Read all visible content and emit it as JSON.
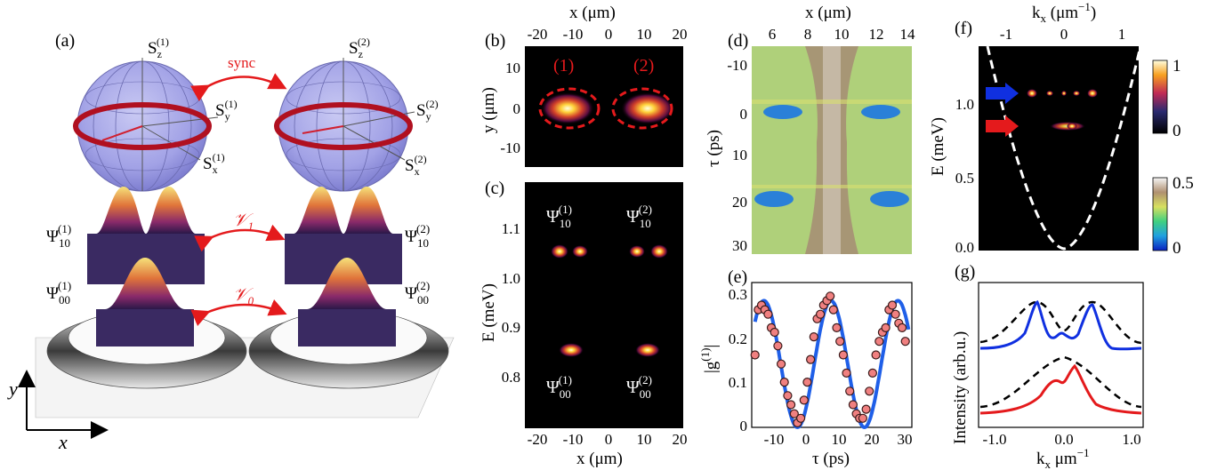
{
  "panels": {
    "a": {
      "label": "(a)",
      "sphere1": {
        "z": "S",
        "zsup": "(1)",
        "zsub": "z",
        "y": "S",
        "ysup": "(1)",
        "ysub": "y",
        "x": "S",
        "xsup": "(1)",
        "xsub": "x"
      },
      "sphere2": {
        "z": "S",
        "zsup": "(2)",
        "zsub": "z",
        "y": "S",
        "ysup": "(2)",
        "ysub": "y",
        "x": "S",
        "xsup": "(2)",
        "xsub": "x"
      },
      "sync": "sync",
      "v1": "𝒱",
      "v1sub": "1",
      "v0": "𝒱",
      "v0sub": "0",
      "psi10_1": {
        "base": "Ψ",
        "sub": "10",
        "sup": "(1)"
      },
      "psi10_2": {
        "base": "Ψ",
        "sub": "10",
        "sup": "(2)"
      },
      "psi00_1": {
        "base": "Ψ",
        "sub": "00",
        "sup": "(1)"
      },
      "psi00_2": {
        "base": "Ψ",
        "sub": "00",
        "sup": "(2)"
      },
      "axis_y": "y",
      "axis_x": "x"
    },
    "b": {
      "label": "(b)",
      "xlabel": "x (μm)",
      "ylabel": "y (μm)",
      "xticks": [
        "-20",
        "-10",
        "0",
        "10",
        "20"
      ],
      "yticks": [
        "10",
        "0",
        "-10"
      ],
      "mark1": "(1)",
      "mark2": "(2)"
    },
    "c": {
      "label": "(c)",
      "xlabel": "x (μm)",
      "ylabel": "E (meV)",
      "xticks": [
        "-20",
        "-10",
        "0",
        "10",
        "20"
      ],
      "yticks": [
        "1.1",
        "1.0",
        "0.9",
        "0.8"
      ],
      "psi10_1": {
        "base": "Ψ",
        "sub": "10",
        "sup": "(1)"
      },
      "psi10_2": {
        "base": "Ψ",
        "sub": "10",
        "sup": "(2)"
      },
      "psi00_1": {
        "base": "Ψ",
        "sub": "00",
        "sup": "(1)"
      },
      "psi00_2": {
        "base": "Ψ",
        "sub": "00",
        "sup": "(2)"
      }
    },
    "d": {
      "label": "(d)",
      "xlabel": "x (μm)",
      "ylabel": "τ (ps)",
      "xticks": [
        "6",
        "8",
        "10",
        "12",
        "14"
      ],
      "yticks": [
        "-10",
        "0",
        "10",
        "20",
        "30"
      ]
    },
    "e": {
      "label": "(e)",
      "xlabel": "τ (ps)",
      "ylabel": "|g",
      "ylabel_sup": "(1)",
      "ylabel_end": "|",
      "xticks": [
        "-10",
        "0",
        "10",
        "20",
        "30"
      ],
      "yticks": [
        "0.3",
        "0.2",
        "0.1",
        "0"
      ]
    },
    "f": {
      "label": "(f)",
      "xlabel": "k",
      "xlabel_sub": "x",
      "xlabel_unit": " (μm",
      "xlabel_unit_sup": "−1",
      "xlabel_end": ")",
      "ylabel": "E (meV)",
      "xticks": [
        "-1",
        "0",
        "1"
      ],
      "yticks": [
        "1.0",
        "0.5",
        "0.0"
      ],
      "cbar1_ticks": [
        "1",
        "0"
      ],
      "cbar2_ticks": [
        "0.5",
        "0"
      ]
    },
    "g": {
      "label": "(g)",
      "xlabel": "k",
      "xlabel_sub": "x",
      "xlabel_unit": " μm",
      "xlabel_unit_sup": "−1",
      "ylabel": "Intensity (arb.u.)",
      "xticks": [
        "-1.0",
        "0.0",
        "1.0"
      ]
    }
  },
  "colors": {
    "red": "#e41a1c",
    "blue": "#1030e0",
    "marker": "#f08080",
    "fit": "#1f5fe8"
  },
  "chart_data": [
    {
      "type": "scatter",
      "panel": "e",
      "xlabel": "τ (ps)",
      "ylabel": "|g(1)|",
      "xlim": [
        -14,
        35
      ],
      "ylim": [
        0,
        0.32
      ],
      "x": [
        -13,
        -12,
        -11,
        -10,
        -9,
        -8,
        -7,
        -6,
        -5,
        -4,
        -3,
        -2,
        -1,
        0,
        1,
        2,
        3,
        4,
        5,
        6,
        7,
        8,
        9,
        10,
        11,
        12,
        13,
        14,
        15,
        16,
        17,
        18,
        19,
        20,
        21,
        22,
        23,
        24,
        25,
        26,
        27,
        28,
        29,
        30,
        31,
        32,
        33
      ],
      "y": [
        0.16,
        0.26,
        0.27,
        0.26,
        0.25,
        0.22,
        0.21,
        0.18,
        0.14,
        0.1,
        0.07,
        0.05,
        0.03,
        0.01,
        0.02,
        0.06,
        0.1,
        0.15,
        0.2,
        0.24,
        0.25,
        0.27,
        0.28,
        0.29,
        0.26,
        0.22,
        0.19,
        0.16,
        0.12,
        0.08,
        0.05,
        0.03,
        0.02,
        0.02,
        0.04,
        0.08,
        0.12,
        0.16,
        0.19,
        0.21,
        0.22,
        0.26,
        0.27,
        0.25,
        0.23,
        0.22,
        0.19
      ],
      "fit": {
        "amplitude": 0.14,
        "offset": 0.14,
        "period": 20.5,
        "phase_zero_tau": 0
      }
    },
    {
      "type": "line",
      "panel": "g",
      "xlabel": "kx μm−1",
      "ylabel": "Intensity (arb.u.)",
      "xlim": [
        -1.05,
        1.05
      ],
      "series": []
    }
  ]
}
